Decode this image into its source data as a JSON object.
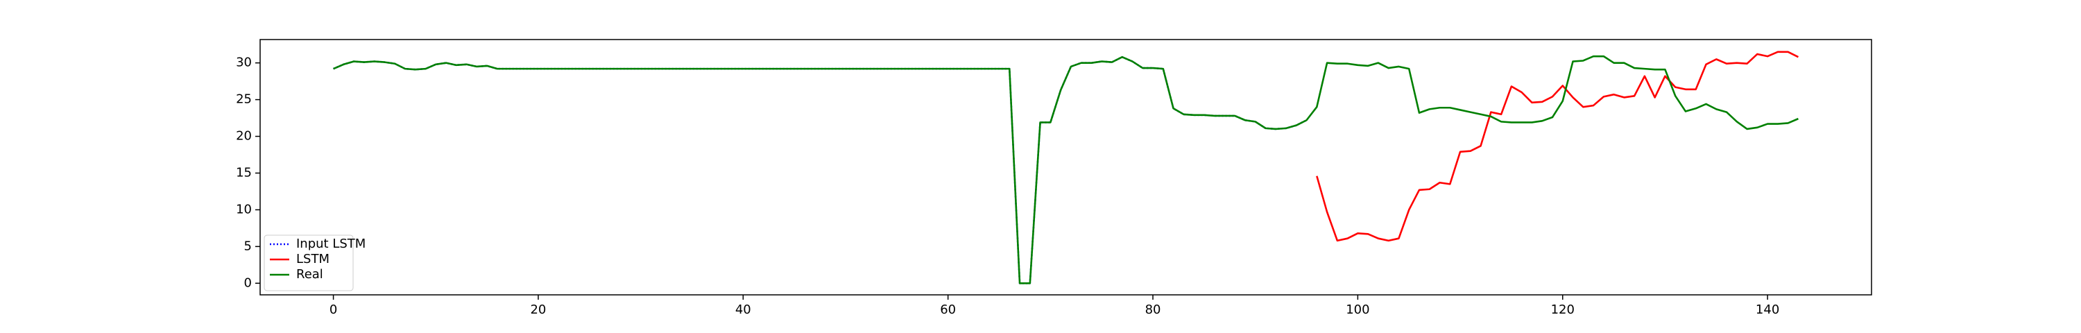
{
  "chart_data": {
    "type": "line",
    "x": [
      0,
      1,
      2,
      3,
      4,
      5,
      6,
      7,
      8,
      9,
      10,
      11,
      12,
      13,
      14,
      15,
      16,
      17,
      18,
      19,
      20,
      21,
      22,
      23,
      24,
      25,
      26,
      27,
      28,
      29,
      30,
      31,
      32,
      33,
      34,
      35,
      36,
      37,
      38,
      39,
      40,
      41,
      42,
      43,
      44,
      45,
      46,
      47,
      48,
      49,
      50,
      51,
      52,
      53,
      54,
      55,
      56,
      57,
      58,
      59,
      60,
      61,
      62,
      63,
      64,
      65,
      66,
      67,
      68,
      69,
      70,
      71,
      72,
      73,
      74,
      75,
      76,
      77,
      78,
      79,
      80,
      81,
      82,
      83,
      84,
      85,
      86,
      87,
      88,
      89,
      90,
      91,
      92,
      93,
      94,
      95,
      96,
      97,
      98,
      99,
      100,
      101,
      102,
      103,
      104,
      105,
      106,
      107,
      108,
      109,
      110,
      111,
      112,
      113,
      114,
      115,
      116,
      117,
      118,
      119,
      120,
      121,
      122,
      123,
      124,
      125,
      126,
      127,
      128,
      129,
      130,
      131,
      132,
      133,
      134,
      135,
      136,
      137,
      138,
      139,
      140,
      141,
      142,
      143
    ],
    "series": [
      {
        "name": "Input LSTM",
        "color": "#0000ff",
        "linestyle": "dotted",
        "values": [
          29.2,
          29.8,
          30.2,
          30.1,
          30.2,
          30.1,
          29.9,
          29.2,
          29.1,
          29.2,
          29.8,
          30.0,
          29.7,
          29.8,
          29.5,
          29.6,
          29.2,
          29.2,
          29.2,
          29.2,
          29.2,
          29.2,
          29.2,
          29.2,
          29.2,
          29.2,
          29.2,
          29.2,
          29.2,
          29.2,
          29.2,
          29.2,
          29.2,
          29.2,
          29.2,
          29.2,
          29.2,
          29.2,
          29.2,
          29.2,
          29.2,
          29.2,
          29.2,
          29.2,
          29.2,
          29.2,
          29.2,
          29.2,
          29.2,
          29.2,
          29.2,
          29.2,
          29.2,
          29.2,
          29.2,
          29.2,
          29.2,
          29.2,
          29.2,
          29.2,
          29.2,
          29.2,
          29.2,
          29.2,
          29.2,
          29.2,
          29.2,
          0,
          0,
          21.9,
          21.9,
          26.3,
          29.5,
          30.0,
          30.0,
          30.2,
          30.1,
          30.8,
          30.2,
          29.3,
          29.3,
          29.2,
          23.8,
          23.0,
          22.9,
          22.9,
          22.8,
          22.8,
          22.8,
          22.2,
          22.0,
          21.1,
          21.0,
          21.1,
          21.5,
          22.2,
          null,
          null,
          null,
          null,
          null,
          null,
          null,
          null,
          null,
          null,
          null,
          null,
          null,
          null,
          null,
          null,
          null,
          null,
          null,
          null,
          null,
          null,
          null,
          null,
          null,
          null,
          null,
          null,
          null,
          null,
          null,
          null,
          null,
          null,
          null,
          null,
          null,
          null,
          null,
          null,
          null,
          null,
          null,
          null,
          null,
          null,
          null,
          null
        ]
      },
      {
        "name": "LSTM",
        "color": "#ff0000",
        "linestyle": "solid",
        "values": [
          null,
          null,
          null,
          null,
          null,
          null,
          null,
          null,
          null,
          null,
          null,
          null,
          null,
          null,
          null,
          null,
          null,
          null,
          null,
          null,
          null,
          null,
          null,
          null,
          null,
          null,
          null,
          null,
          null,
          null,
          null,
          null,
          null,
          null,
          null,
          null,
          null,
          null,
          null,
          null,
          null,
          null,
          null,
          null,
          null,
          null,
          null,
          null,
          null,
          null,
          null,
          null,
          null,
          null,
          null,
          null,
          null,
          null,
          null,
          null,
          null,
          null,
          null,
          null,
          null,
          null,
          null,
          null,
          null,
          null,
          null,
          null,
          null,
          null,
          null,
          null,
          null,
          null,
          null,
          null,
          null,
          null,
          null,
          null,
          null,
          null,
          null,
          null,
          null,
          null,
          null,
          null,
          null,
          null,
          null,
          null,
          14.6,
          9.7,
          5.8,
          6.1,
          6.8,
          6.7,
          6.1,
          5.8,
          6.1,
          10.0,
          12.7,
          12.8,
          13.7,
          13.5,
          17.9,
          18.0,
          18.7,
          23.3,
          23.0,
          26.8,
          26.0,
          24.6,
          24.7,
          25.4,
          26.9,
          25.3,
          24.0,
          24.2,
          25.4,
          25.7,
          25.3,
          25.5,
          28.2,
          25.3,
          28.2,
          26.7,
          26.4,
          26.4,
          29.8,
          30.5,
          29.9,
          30.0,
          29.9,
          31.2,
          30.9,
          31.5,
          31.5,
          30.8
        ]
      },
      {
        "name": "Real",
        "color": "#008000",
        "linestyle": "solid",
        "values": [
          29.2,
          29.8,
          30.2,
          30.1,
          30.2,
          30.1,
          29.9,
          29.2,
          29.1,
          29.2,
          29.8,
          30.0,
          29.7,
          29.8,
          29.5,
          29.6,
          29.2,
          29.2,
          29.2,
          29.2,
          29.2,
          29.2,
          29.2,
          29.2,
          29.2,
          29.2,
          29.2,
          29.2,
          29.2,
          29.2,
          29.2,
          29.2,
          29.2,
          29.2,
          29.2,
          29.2,
          29.2,
          29.2,
          29.2,
          29.2,
          29.2,
          29.2,
          29.2,
          29.2,
          29.2,
          29.2,
          29.2,
          29.2,
          29.2,
          29.2,
          29.2,
          29.2,
          29.2,
          29.2,
          29.2,
          29.2,
          29.2,
          29.2,
          29.2,
          29.2,
          29.2,
          29.2,
          29.2,
          29.2,
          29.2,
          29.2,
          29.2,
          0,
          0,
          21.9,
          21.9,
          26.3,
          29.5,
          30.0,
          30.0,
          30.2,
          30.1,
          30.8,
          30.2,
          29.3,
          29.3,
          29.2,
          23.8,
          23.0,
          22.9,
          22.9,
          22.8,
          22.8,
          22.8,
          22.2,
          22.0,
          21.1,
          21.0,
          21.1,
          21.5,
          22.2,
          24.0,
          30.0,
          29.9,
          29.9,
          29.7,
          29.6,
          30.0,
          29.3,
          29.5,
          29.2,
          23.2,
          23.7,
          23.9,
          23.9,
          23.6,
          23.3,
          23.0,
          22.7,
          22.0,
          21.9,
          21.9,
          21.9,
          22.1,
          22.6,
          24.8,
          30.2,
          30.3,
          30.9,
          30.9,
          30.0,
          30.0,
          29.3,
          29.2,
          29.1,
          29.1,
          25.5,
          23.4,
          23.8,
          24.4,
          23.7,
          23.3,
          22.0,
          21.0,
          21.2,
          21.7,
          21.7,
          21.8,
          22.4
        ]
      }
    ],
    "xlim": [
      -7.15,
      150.15
    ],
    "xticks": [
      0,
      20,
      40,
      60,
      80,
      100,
      120,
      140
    ],
    "ylim": [
      -1.58,
      33.18
    ],
    "yticks": [
      0,
      5,
      10,
      15,
      20,
      25,
      30
    ],
    "grid": false,
    "legend": "lower left"
  }
}
